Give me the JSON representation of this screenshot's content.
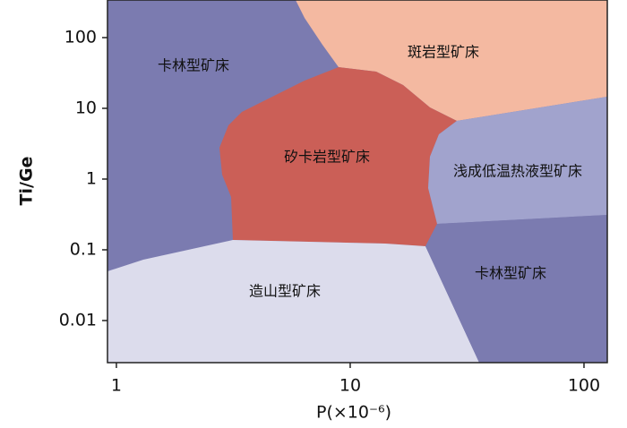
{
  "chart_data": {
    "type": "region",
    "xlabel": "P(×10⁻⁶)",
    "ylabel": "Ti/Ge",
    "xscale": "log",
    "yscale": "log",
    "xlim": [
      0.916,
      125.8
    ],
    "ylim": [
      0.00254,
      340
    ],
    "xticks": [
      1,
      10,
      100
    ],
    "yticks": [
      0.01,
      0.1,
      1,
      10,
      100
    ],
    "regions": [
      {
        "name": "卡林型矿床",
        "color": "#7b7bb0"
      },
      {
        "name": "斑岩型矿床",
        "color": "#f4b9a1"
      },
      {
        "name": "矽卡岩型矿床",
        "color": "#cb5f57"
      },
      {
        "name": "浅成低温热液型矿床",
        "color": "#a1a3cd"
      },
      {
        "name": "造山型矿床",
        "color": "#dcdcec"
      },
      {
        "name": "卡林型矿床",
        "color": "#7b7bb0"
      }
    ]
  }
}
